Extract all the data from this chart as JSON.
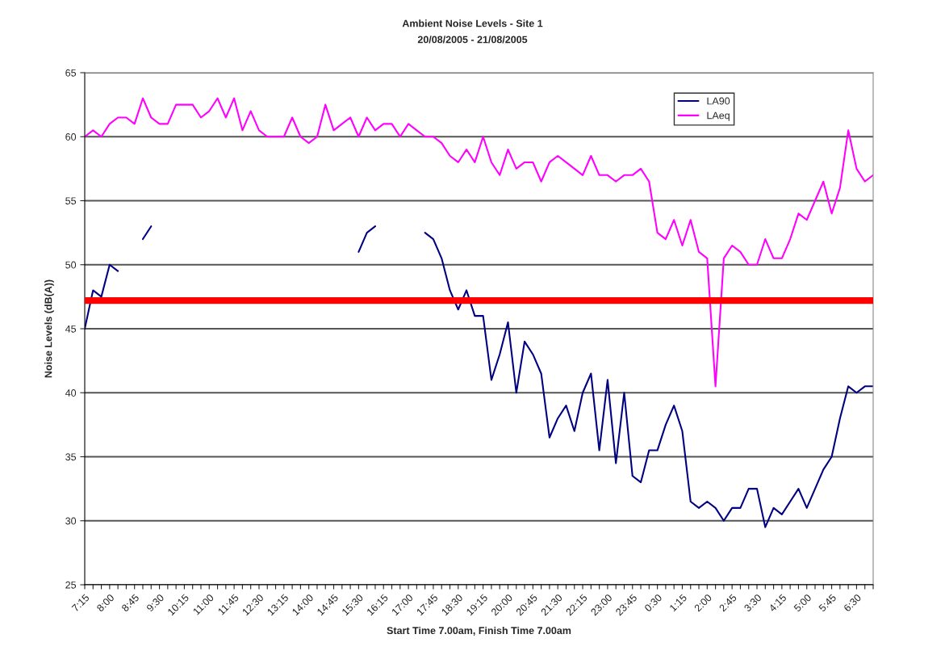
{
  "chart_data": {
    "type": "line",
    "title": "Ambient Noise Levels - Site 1",
    "subtitle": "20/08/2005 - 21/08/2005",
    "xlabel": "Start Time 7.00am, Finish Time 7.00am",
    "ylabel": "Noise Levels (dB(A))",
    "categories": [
      "7:15",
      null,
      null,
      "8:00",
      null,
      null,
      "8:45",
      null,
      null,
      "9:30",
      null,
      null,
      "10:15",
      null,
      null,
      "11:00",
      null,
      null,
      "11:45",
      null,
      null,
      "12:30",
      null,
      null,
      "13:15",
      null,
      null,
      "14:00",
      null,
      null,
      "14:45",
      null,
      null,
      "15:30",
      null,
      null,
      "16:15",
      null,
      null,
      "17:00",
      null,
      null,
      "17:45",
      null,
      null,
      "18:30",
      null,
      null,
      "19:15",
      null,
      null,
      "20:00",
      null,
      null,
      "20:45",
      null,
      null,
      "21:30",
      null,
      null,
      "22:15",
      null,
      null,
      "23:00",
      null,
      null,
      "23:45",
      null,
      null,
      "0:30",
      null,
      null,
      "1:15",
      null,
      null,
      "2:00",
      null,
      null,
      "2:45",
      null,
      null,
      "3:30",
      null,
      null,
      "4:15",
      null,
      null,
      "5:00",
      null,
      null,
      "5:45",
      null,
      null,
      "6:30",
      null,
      null
    ],
    "series": [
      {
        "name": "LA90",
        "color": "#000080",
        "values": [
          45,
          48,
          47.5,
          50,
          49.5,
          null,
          null,
          52,
          53,
          null,
          null,
          null,
          null,
          null,
          null,
          null,
          null,
          null,
          null,
          null,
          null,
          null,
          null,
          null,
          null,
          null,
          null,
          null,
          null,
          null,
          null,
          null,
          null,
          51,
          52.5,
          53,
          null,
          null,
          null,
          null,
          null,
          52.5,
          52,
          50.5,
          48,
          46.5,
          48,
          46,
          46,
          41,
          43,
          45.5,
          40,
          44,
          43,
          41.5,
          36.5,
          38,
          39,
          37,
          40,
          41.5,
          35.5,
          41,
          34.5,
          40,
          33.5,
          33,
          35.5,
          35.5,
          37.5,
          39,
          37,
          31.5,
          31,
          31.5,
          31,
          30,
          31,
          31,
          32.5,
          32.5,
          29.5,
          31,
          30.5,
          31.5,
          32.5,
          31,
          32.5,
          34,
          35,
          38,
          40.5,
          40,
          40.5,
          40.5
        ]
      },
      {
        "name": "LAeq",
        "color": "#ff00ff",
        "values": [
          60,
          60.5,
          60,
          61,
          61.5,
          61.5,
          61,
          63,
          61.5,
          61,
          61,
          62.5,
          62.5,
          62.5,
          61.5,
          62,
          63,
          61.5,
          63,
          60.5,
          62,
          60.5,
          60,
          60,
          60,
          61.5,
          60,
          59.5,
          60,
          62.5,
          60.5,
          61,
          61.5,
          60,
          61.5,
          60.5,
          61,
          61,
          60,
          61,
          60.5,
          60,
          60,
          59.5,
          58.5,
          58,
          59,
          58,
          60,
          58,
          57,
          59,
          57.5,
          58,
          58,
          56.5,
          58,
          58.5,
          58,
          57.5,
          57,
          58.5,
          57,
          57,
          56.5,
          57,
          57,
          57.5,
          56.5,
          52.5,
          52,
          53.5,
          51.5,
          53.5,
          51,
          50.5,
          40.5,
          50.5,
          51.5,
          51,
          50,
          50,
          52,
          50.5,
          50.5,
          52,
          54,
          53.5,
          55,
          56.5,
          54,
          56,
          60.5,
          57.5,
          56.5,
          57
        ]
      }
    ],
    "ylim": [
      25,
      65
    ],
    "yticks": [
      25,
      30,
      35,
      40,
      45,
      50,
      55,
      60,
      65
    ],
    "grid": "y",
    "legend": "top right",
    "ref_lines": [
      {
        "axis": "y",
        "value": 47.2,
        "color": "#ff0000"
      }
    ]
  }
}
